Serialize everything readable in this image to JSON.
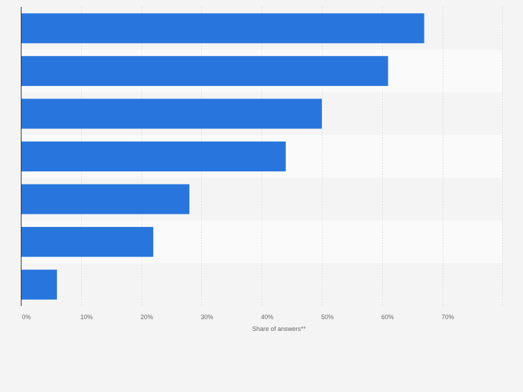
{
  "chart_data": {
    "type": "bar",
    "orientation": "horizontal",
    "title": "",
    "categories": [
      "",
      "",
      "",
      "",
      "",
      "",
      ""
    ],
    "values": [
      67,
      61,
      50,
      44,
      28,
      22,
      6
    ],
    "xlabel": "Share of answers**",
    "ylabel": "",
    "xlim": [
      0,
      80
    ],
    "xticks": [
      0,
      10,
      20,
      30,
      40,
      50,
      60,
      70
    ],
    "tick_labels": [
      "0%",
      "10%",
      "20%",
      "30%",
      "40%",
      "50%",
      "60%",
      "70%"
    ],
    "grid": true,
    "colors": {
      "bar": "#2876dd",
      "band_light": "#fafafa",
      "band_dark": "#f4f4f4",
      "grid": "#dedede",
      "axis": "#333333",
      "text": "#666666"
    }
  }
}
